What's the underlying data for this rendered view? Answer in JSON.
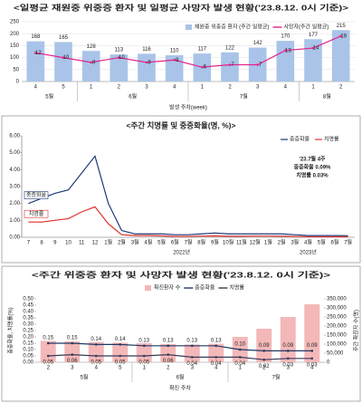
{
  "chart_data": [
    {
      "type": "combo",
      "title": "<일평균 재원중 위중증 환자 및 일평균 사망자 발생 현황('23.8.12. 0시 기준)>",
      "x_label": "발생 주차(week)",
      "categories": [
        "4",
        "5",
        "1",
        "2",
        "3",
        "4",
        "1",
        "2",
        "3",
        "4",
        "1",
        "2"
      ],
      "groups": [
        "5월",
        "6월",
        "7월",
        "8월"
      ],
      "ylim": [
        0,
        250
      ],
      "yticks": [
        0,
        50,
        100,
        150,
        200,
        250
      ],
      "y2lim": [
        0,
        25
      ],
      "grid": true,
      "series": [
        {
          "name": "재원중 위중증 환자 (주간 일평균)",
          "type": "bar",
          "color": "#a9c4e8",
          "values": [
            168,
            165,
            128,
            113,
            116,
            110,
            117,
            122,
            142,
            170,
            177,
            215
          ]
        },
        {
          "name": "사망자(주간 일평균)",
          "type": "line",
          "axis": "y2",
          "color": "#e2238c",
          "values": [
            12,
            10,
            8,
            10,
            8,
            9,
            6,
            7,
            7,
            13,
            14,
            19
          ]
        }
      ]
    },
    {
      "type": "line",
      "title": "<주간 치명률 및 중증화율(명, %)>",
      "categories": [
        "7",
        "8",
        "9",
        "10",
        "11",
        "12",
        "1월",
        "2월",
        "3월",
        "4월",
        "5월",
        "6월",
        "7월",
        "8월",
        "9월",
        "10월",
        "11월",
        "12월",
        "1월",
        "2월",
        "3월",
        "4월",
        "5월",
        "6월",
        "7월"
      ],
      "year_labels": [
        "2022년",
        "2023년"
      ],
      "ylim": [
        0,
        6
      ],
      "yticks": [
        {
          "value": 0,
          "label": "0.00"
        },
        {
          "value": 1,
          "label": "1.00"
        },
        {
          "value": 2,
          "label": "2.00"
        },
        {
          "value": 3,
          "label": "3.00"
        },
        {
          "value": 4,
          "label": "4.00"
        },
        {
          "value": 5,
          "label": "5.00"
        },
        {
          "value": 6,
          "label": "6.00"
        }
      ],
      "notes": [
        "'23.7월 4주",
        "중증화율 0.09%",
        "치명률 0.03%"
      ],
      "series": [
        {
          "name": "중증화율",
          "color": "#1f3a7a",
          "values": [
            2.0,
            2.3,
            2.6,
            2.8,
            3.8,
            4.8,
            2.0,
            0.4,
            0.2,
            0.2,
            0.2,
            0.15,
            0.15,
            0.2,
            0.25,
            0.2,
            0.2,
            0.2,
            0.2,
            0.2,
            0.15,
            0.1,
            0.1,
            0.1,
            0.09
          ]
        },
        {
          "name": "치명률",
          "color": "#e0302a",
          "values": [
            0.9,
            0.9,
            1.0,
            1.1,
            1.5,
            1.8,
            0.8,
            0.15,
            0.1,
            0.1,
            0.08,
            0.05,
            0.05,
            0.07,
            0.08,
            0.06,
            0.06,
            0.07,
            0.07,
            0.06,
            0.05,
            0.03,
            0.03,
            0.03,
            0.03
          ]
        }
      ]
    },
    {
      "type": "combo",
      "title": "<주간 위중증 환자 및 사망자 발생 현황('23.8.12. 0시 기준)>",
      "x_label": "확진 주차",
      "y_label": "중증화율, 치명률(%)",
      "y2_label": "주간 확진자 수(명)",
      "categories": [
        "2",
        "3",
        "4",
        "5",
        "1",
        "2",
        "3",
        "4",
        "1",
        "2",
        "3",
        "4"
      ],
      "groups": [
        "5월",
        "6월",
        "7월"
      ],
      "ylim": [
        0,
        0.5
      ],
      "yticks": [
        {
          "value": 0,
          "label": "0.00"
        },
        0.05,
        {
          "value": 0.1,
          "label": "0.10"
        },
        0.15,
        {
          "value": 0.2,
          "label": "0.20"
        },
        0.25,
        {
          "value": 0.3,
          "label": "0.30"
        },
        0.35,
        {
          "value": 0.4,
          "label": "0.40"
        },
        0.45,
        {
          "value": 0.5,
          "label": "0.50"
        }
      ],
      "y2lim": [
        0,
        350000
      ],
      "y2ticks": [
        0,
        {
          "value": 50000,
          "label": "50,000"
        },
        {
          "value": 100000,
          "label": "100,000"
        },
        {
          "value": 150000,
          "label": "150,000"
        },
        {
          "value": 200000,
          "label": "200,000"
        },
        {
          "value": 250000,
          "label": "250,000"
        },
        {
          "value": 300000,
          "label": "300,000"
        },
        {
          "value": 350000,
          "label": "350,000"
        }
      ],
      "grid": false,
      "series": [
        {
          "name": "확진환자 수",
          "type": "bar",
          "axis": "y2",
          "color": "#f4b8b8",
          "values": [
            118000,
            115000,
            112000,
            108000,
            105000,
            100000,
            98000,
            102000,
            140000,
            185000,
            250000,
            320000
          ]
        },
        {
          "name": "중증화율",
          "type": "line",
          "color": "#1f3864",
          "values": [
            0.15,
            0.15,
            0.14,
            0.14,
            0.13,
            0.13,
            0.13,
            0.13,
            0.1,
            0.09,
            0.09,
            0.09
          ],
          "value_labels": [
            "0.15",
            "0.15",
            "0.14",
            "0.14",
            "0.13",
            "0.13",
            "0.13",
            "0.13",
            "0.10",
            "0.09",
            "0.09",
            "0.09"
          ]
        },
        {
          "name": "치명률",
          "type": "line",
          "color": "#3a3a5a",
          "values": [
            0.05,
            0.06,
            0.05,
            0.05,
            0.05,
            0.06,
            0.04,
            0.04,
            0.04,
            0.02,
            0.03,
            0.03
          ],
          "value_labels": [
            "0.05",
            "0.06",
            "0.05",
            "0.05",
            "0.05",
            "0.06",
            "0.04",
            "0.04",
            "0.04",
            "0.02",
            "0.03",
            "0.03"
          ]
        }
      ]
    }
  ]
}
